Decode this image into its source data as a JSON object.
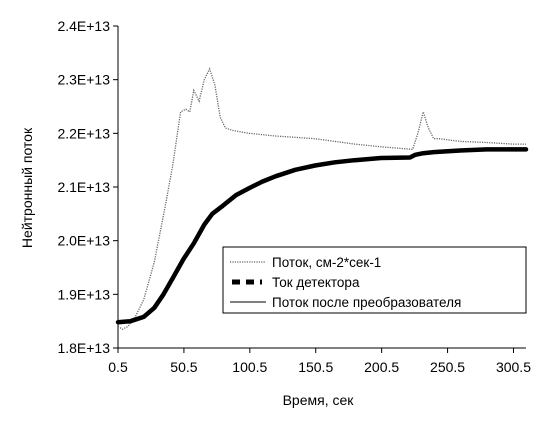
{
  "chart_data": {
    "type": "line",
    "title": "",
    "xlabel": "Время, сек",
    "ylabel": "Нейтронный поток",
    "xlim": [
      0.5,
      310
    ],
    "ylim": [
      18000000000000.0,
      24000000000000.0
    ],
    "x_ticks": [
      0.5,
      50.5,
      100.5,
      150.5,
      200.5,
      250.5,
      300.5
    ],
    "x_tick_labels": [
      "0.5",
      "50.5",
      "100.5",
      "150.5",
      "200.5",
      "250.5",
      "300.5"
    ],
    "y_ticks": [
      18000000000000.0,
      19000000000000.0,
      20000000000000.0,
      21000000000000.0,
      22000000000000.0,
      23000000000000.0,
      24000000000000.0
    ],
    "y_tick_labels": [
      "1.8E+13",
      "1.9E+13",
      "2.0E+13",
      "2.1E+13",
      "2.2E+13",
      "2.3E+13",
      "2.4E+13"
    ],
    "grid": false,
    "legend_position": "bottom-right",
    "series": [
      {
        "name": "Поток, см-2*сек-1",
        "style": "dotted",
        "color": "#000000",
        "x": [
          0.5,
          4,
          8,
          14,
          20,
          28,
          36,
          42,
          48,
          52,
          55,
          58,
          62,
          66,
          70,
          74,
          78,
          82,
          88,
          100,
          120,
          150,
          180,
          200,
          224,
          228,
          232,
          236,
          240,
          244,
          260,
          280,
          300,
          310
        ],
        "y": [
          18400000000000.0,
          18350000000000.0,
          18400000000000.0,
          18600000000000.0,
          18900000000000.0,
          19600000000000.0,
          20600000000000.0,
          21400000000000.0,
          22400000000000.0,
          22450000000000.0,
          22400000000000.0,
          22800000000000.0,
          22600000000000.0,
          23000000000000.0,
          23200000000000.0,
          22900000000000.0,
          22300000000000.0,
          22100000000000.0,
          22050000000000.0,
          22000000000000.0,
          21950000000000.0,
          21900000000000.0,
          21800000000000.0,
          21750000000000.0,
          21700000000000.0,
          22000000000000.0,
          22400000000000.0,
          22100000000000.0,
          21900000000000.0,
          21900000000000.0,
          21850000000000.0,
          21830000000000.0,
          21800000000000.0,
          21800000000000.0
        ]
      },
      {
        "name": "Ток детектора",
        "style": "thick",
        "color": "#000000",
        "x": [
          0.5,
          10,
          20,
          28,
          35,
          42,
          50,
          58,
          66,
          72,
          80,
          90,
          100,
          110,
          120,
          135,
          150,
          165,
          180,
          200,
          222,
          226,
          232,
          240,
          260,
          280,
          310
        ],
        "y": [
          18480000000000.0,
          18500000000000.0,
          18580000000000.0,
          18750000000000.0,
          19000000000000.0,
          19300000000000.0,
          19650000000000.0,
          19950000000000.0,
          20300000000000.0,
          20500000000000.0,
          20650000000000.0,
          20850000000000.0,
          20980000000000.0,
          21100000000000.0,
          21200000000000.0,
          21320000000000.0,
          21400000000000.0,
          21460000000000.0,
          21500000000000.0,
          21540000000000.0,
          21550000000000.0,
          21600000000000.0,
          21630000000000.0,
          21650000000000.0,
          21680000000000.0,
          21700000000000.0,
          21700000000000.0
        ]
      },
      {
        "name": "Поток после преобразователя",
        "style": "thin",
        "color": "#000000",
        "x": [
          0.5,
          10,
          20,
          28,
          35,
          42,
          50,
          58,
          66,
          72,
          80,
          90,
          100,
          110,
          120,
          135,
          150,
          165,
          180,
          200,
          222,
          226,
          232,
          240,
          260,
          280,
          310
        ],
        "y": [
          18480000000000.0,
          18500000000000.0,
          18580000000000.0,
          18750000000000.0,
          19000000000000.0,
          19300000000000.0,
          19650000000000.0,
          19950000000000.0,
          20300000000000.0,
          20500000000000.0,
          20650000000000.0,
          20850000000000.0,
          20980000000000.0,
          21100000000000.0,
          21200000000000.0,
          21320000000000.0,
          21400000000000.0,
          21460000000000.0,
          21500000000000.0,
          21540000000000.0,
          21550000000000.0,
          21600000000000.0,
          21630000000000.0,
          21650000000000.0,
          21680000000000.0,
          21700000000000.0,
          21700000000000.0
        ]
      }
    ]
  }
}
